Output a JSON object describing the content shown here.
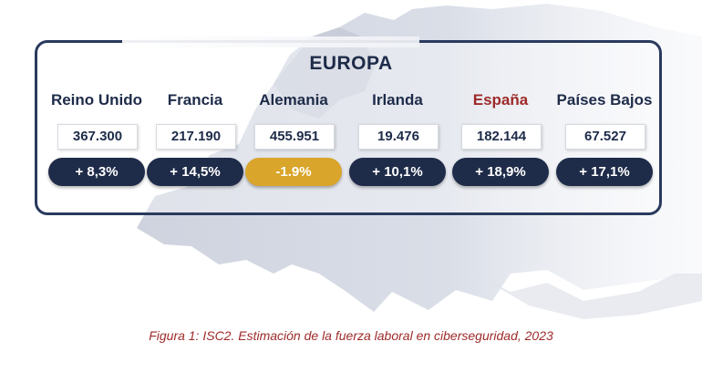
{
  "chart_data": {
    "type": "table",
    "title": "EUROPA",
    "caption": "Figura 1: ISC2. Estimación de la fuerza laboral en ciberseguridad, 2023",
    "categories": [
      "Reino Unido",
      "Francia",
      "Alemania",
      "Irlanda",
      "España",
      "Países Bajos"
    ],
    "values": [
      367300,
      217190,
      455951,
      19476,
      182144,
      67527
    ],
    "value_labels": [
      "367.300",
      "217.190",
      "455.951",
      "19.476",
      "182.144",
      "67.527"
    ],
    "changes": [
      8.3,
      14.5,
      -1.9,
      10.1,
      18.9,
      17.1
    ],
    "change_labels": [
      "+  8,3%",
      "+  14,5%",
      "-1.9%",
      "+  10,1%",
      "+  18,9%",
      "+  17,1%"
    ],
    "highlighted": "España",
    "colors": {
      "navy": "#1e2b49",
      "highlight_text": "#9e2a2a",
      "negative_pill": "#d9a52a",
      "positive_pill": "#1e2b49"
    }
  }
}
